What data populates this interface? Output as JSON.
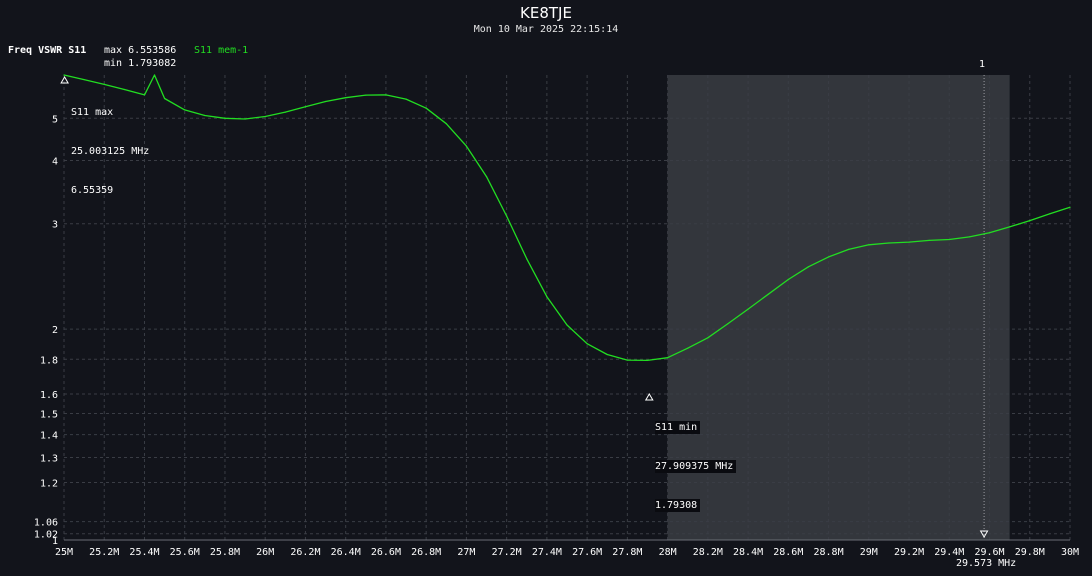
{
  "header": {
    "title": "KE8TJE",
    "datetime": "Mon 10 Mar 2025 22:15:14",
    "legend_label": "Freq VSWR S11",
    "max_text": "max 6.553586",
    "min_text": "min 1.793082",
    "memory_label": "S11 mem-1"
  },
  "colors": {
    "background": "#12141b",
    "trace": "#22dd22",
    "grid": "#3a3d45",
    "span_shade": "#3a3c42"
  },
  "markers": {
    "max": {
      "label": "S11 max",
      "freq": "25.003125 MHz",
      "value": "6.55359",
      "x_mhz": 25.003,
      "y": 6.55359
    },
    "min": {
      "label": "S11 min",
      "freq": "27.909375 MHz",
      "value": "1.79308",
      "x_mhz": 27.909,
      "y": 1.79308
    },
    "cursor": {
      "number": "1",
      "freq": "29.573 MHz",
      "x_mhz": 29.573
    }
  },
  "chart_data": {
    "type": "line",
    "title": "KE8TJE",
    "subtitle": "Mon 10 Mar 2025 22:15:14",
    "xlabel": "",
    "ylabel": "",
    "xlim": [
      25,
      30
    ],
    "ylim": [
      1,
      6.55
    ],
    "y_scale": "reflection (VSWR)",
    "grid": true,
    "x_ticks": [
      25,
      25.2,
      25.4,
      25.6,
      25.8,
      26,
      26.2,
      26.4,
      26.6,
      26.8,
      27,
      27.2,
      27.4,
      27.6,
      27.8,
      28,
      28.2,
      28.4,
      28.6,
      28.8,
      29,
      29.2,
      29.4,
      29.6,
      29.8,
      30
    ],
    "x_tick_labels": [
      "25M",
      "25.2M",
      "25.4M",
      "25.6M",
      "25.8M",
      "26M",
      "26.2M",
      "26.4M",
      "26.6M",
      "26.8M",
      "27M",
      "27.2M",
      "27.4M",
      "27.6M",
      "27.8M",
      "28M",
      "28.2M",
      "28.4M",
      "28.6M",
      "28.8M",
      "29M",
      "29.2M",
      "29.4M",
      "29.6M",
      "29.8M",
      "30M"
    ],
    "y_ticks": [
      1,
      1.02,
      1.06,
      1.2,
      1.3,
      1.4,
      1.5,
      1.6,
      1.8,
      2,
      3,
      4,
      5
    ],
    "y_tick_labels": [
      "1",
      "1.02",
      "1.06",
      "1.2",
      "1.3",
      "1.4",
      "1.5",
      "1.6",
      "1.8",
      "2",
      "3",
      "4",
      "5"
    ],
    "shaded_band_mhz": [
      28.0,
      29.7
    ],
    "series": [
      {
        "name": "S11 mem-1",
        "x": [
          25.0,
          25.1,
          25.2,
          25.3,
          25.4,
          25.45,
          25.5,
          25.6,
          25.7,
          25.8,
          25.9,
          26.0,
          26.1,
          26.2,
          26.3,
          26.4,
          26.5,
          26.6,
          26.7,
          26.8,
          26.9,
          27.0,
          27.1,
          27.2,
          27.3,
          27.4,
          27.5,
          27.6,
          27.7,
          27.8,
          27.9,
          28.0,
          28.1,
          28.2,
          28.3,
          28.4,
          28.5,
          28.6,
          28.7,
          28.8,
          28.9,
          29.0,
          29.1,
          29.2,
          29.3,
          29.4,
          29.5,
          29.6,
          29.7,
          29.8,
          29.9,
          30.0
        ],
        "y": [
          6.55,
          6.35,
          6.15,
          5.95,
          5.75,
          6.55,
          5.62,
          5.25,
          5.08,
          5.0,
          4.98,
          5.05,
          5.18,
          5.35,
          5.52,
          5.65,
          5.74,
          5.75,
          5.6,
          5.3,
          4.85,
          4.3,
          3.7,
          3.1,
          2.6,
          2.25,
          2.03,
          1.9,
          1.83,
          1.795,
          1.793,
          1.81,
          1.87,
          1.94,
          2.04,
          2.15,
          2.27,
          2.4,
          2.52,
          2.62,
          2.7,
          2.75,
          2.77,
          2.78,
          2.8,
          2.81,
          2.84,
          2.89,
          2.96,
          3.04,
          3.13,
          3.22
        ]
      }
    ]
  }
}
